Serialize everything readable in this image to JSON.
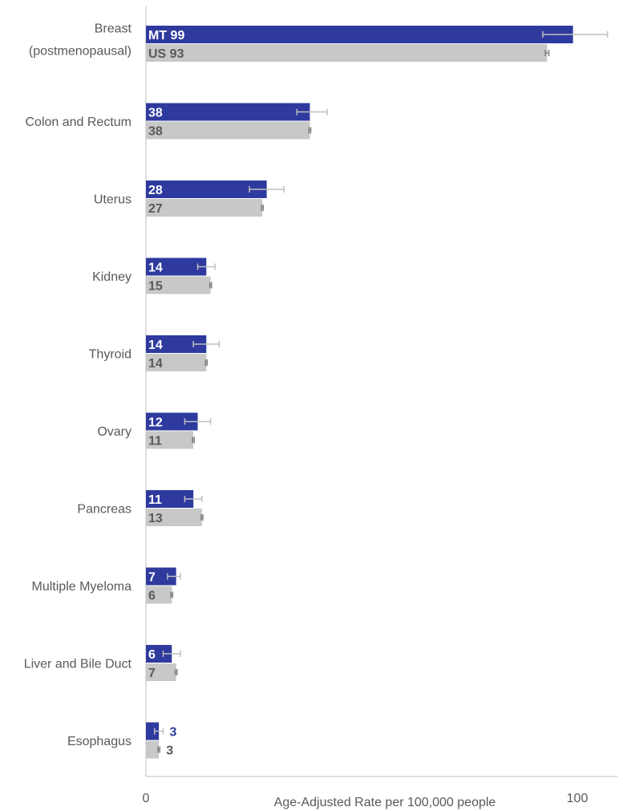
{
  "chart_data": {
    "type": "bar",
    "orientation": "horizontal",
    "categories": [
      "Breast|(postmenopausal)",
      "Colon and Rectum",
      "Uterus",
      "Kidney",
      "Thyroid",
      "Ovary",
      "Pancreas",
      "Multiple Myeloma",
      "Liver and Bile Duct",
      "Esophagus"
    ],
    "series": [
      {
        "name": "MT",
        "color": "#2e3a9e",
        "values": [
          99,
          38,
          28,
          14,
          14,
          12,
          11,
          7,
          6,
          3
        ],
        "error_low": [
          92,
          35,
          24,
          12,
          11,
          9,
          9,
          5,
          4,
          2
        ],
        "error_high": [
          107,
          42,
          32,
          16,
          17,
          15,
          13,
          8,
          8,
          4
        ],
        "labels": [
          "MT 99",
          "38",
          "28",
          "14",
          "14",
          "12",
          "11",
          "7",
          "6",
          "3"
        ]
      },
      {
        "name": "US",
        "color": "#c8c8c8",
        "values": [
          93,
          38,
          27,
          15,
          14,
          11,
          13,
          6,
          7,
          3
        ],
        "error_low": [
          92.6,
          37.8,
          26.8,
          14.8,
          13.8,
          10.8,
          12.8,
          5.8,
          6.8,
          2.8
        ],
        "error_high": [
          93.4,
          38.2,
          27.2,
          15.2,
          14.2,
          11.2,
          13.2,
          6.2,
          7.2,
          3.2
        ],
        "labels": [
          "US 93",
          "38",
          "27",
          "15",
          "14",
          "11",
          "13",
          "6",
          "7",
          "3"
        ]
      }
    ],
    "xlim": [
      0,
      110
    ],
    "x_ticks": [
      "0",
      "100"
    ],
    "xlabel": "Age-Adjusted Rate per 100,000 people",
    "ylabel": "",
    "grid": false,
    "legend": "none"
  }
}
